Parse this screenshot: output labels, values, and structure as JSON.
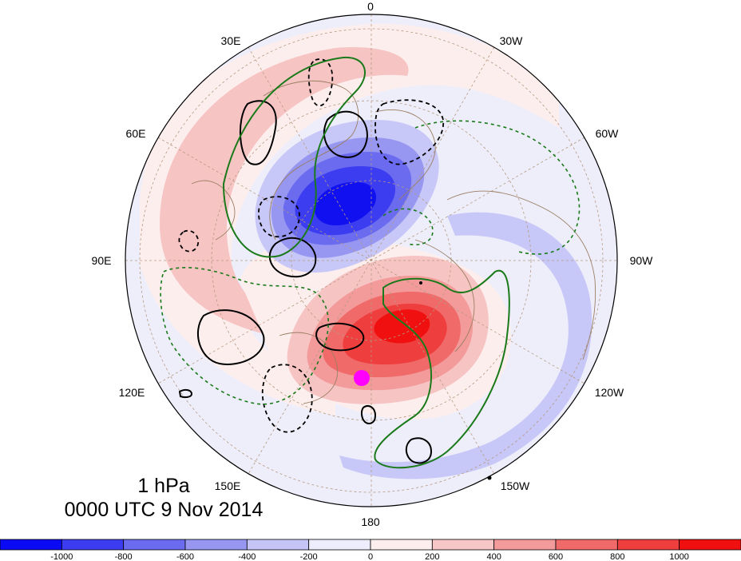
{
  "map": {
    "projection": "north-polar-stereographic",
    "longitude_labels": {
      "top": "0",
      "upper_left_1": "30E",
      "upper_right_1": "30W",
      "upper_left_2": "60E",
      "upper_right_2": "60W",
      "left": "90E",
      "right": "90W",
      "lower_left_2": "120E",
      "lower_right_2": "120W",
      "lower_left_1": "150E",
      "lower_right_1": "150W",
      "bottom": "180"
    },
    "field_colors": {
      "strong_negative": "#1e1ef0",
      "negative": "#6f6ff0",
      "weak_negative": "#c8c8f8",
      "near_zero_negative": "#eeeefb",
      "near_zero_positive": "#fdeeee",
      "weak_positive": "#f7c4c4",
      "positive": "#f27a7a",
      "strong_positive": "#f01414"
    },
    "contour_colors": {
      "black": "#000000",
      "green": "#1a7a1a"
    },
    "marker": {
      "color": "#ff00ff",
      "icon": "magenta-dot"
    }
  },
  "caption": {
    "level": "1 hPa",
    "time": "0000 UTC 9 Nov 2014"
  },
  "colorbar": {
    "ticks": [
      "-1000",
      "-800",
      "-600",
      "-400",
      "-200",
      "0",
      "200",
      "400",
      "600",
      "800",
      "1000"
    ],
    "colors": [
      "#0a0af5",
      "#3c3cf0",
      "#6b6bf0",
      "#9797f2",
      "#c4c4f7",
      "#ededfb",
      "#fdeeee",
      "#f7c6c6",
      "#f39a9a",
      "#f06a6a",
      "#ef3e3e",
      "#f01010"
    ]
  }
}
